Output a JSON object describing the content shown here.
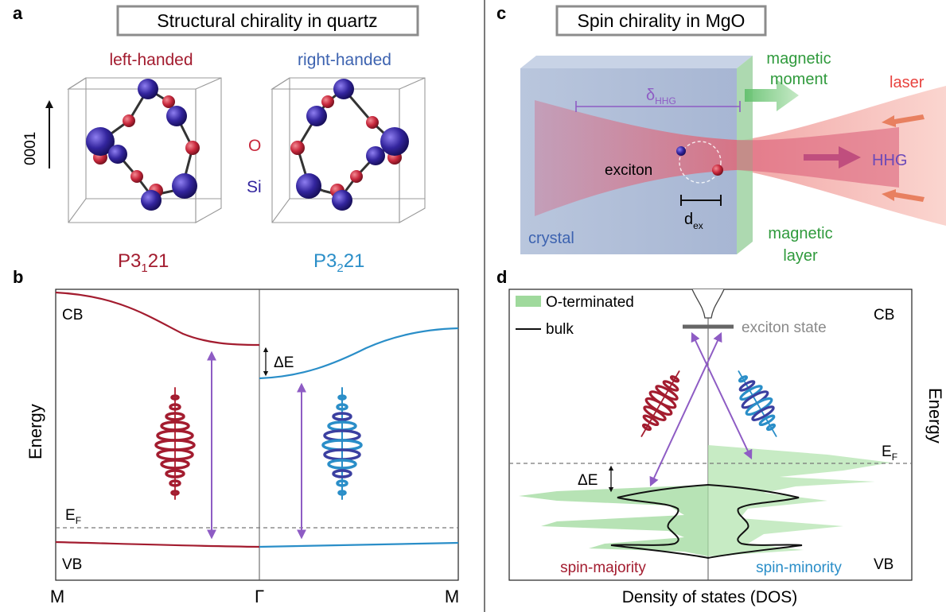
{
  "panel_a": {
    "letter": "a",
    "title": "Structural chirality in quartz",
    "left_label": "left-handed",
    "right_label": "right-handed",
    "axis_label": "0001",
    "legend_o": "O",
    "legend_si": "Si",
    "left_group_main": "P3",
    "left_group_sub": "1",
    "left_group_tail": "21",
    "right_group_main": "P3",
    "right_group_sub": "2",
    "right_group_tail": "21"
  },
  "panel_b": {
    "letter": "b",
    "ylabel": "Energy",
    "cb": "CB",
    "vb": "VB",
    "ef_main": "E",
    "ef_sub": "F",
    "delta_e": "ΔE",
    "x_ticks": [
      "M",
      "Γ",
      "M"
    ]
  },
  "panel_c": {
    "letter": "c",
    "title": "Spin chirality in MgO",
    "magnetic_moment_1": "magnetic",
    "magnetic_moment_2": "moment",
    "laser": "laser",
    "delta_main": "δ",
    "delta_sub": "HHG",
    "exciton": "exciton",
    "hhg": "HHG",
    "dex_main": "d",
    "dex_sub": "ex",
    "crystal": "crystal",
    "magnetic_layer_1": "magnetic",
    "magnetic_layer_2": "layer"
  },
  "panel_d": {
    "letter": "d",
    "legend_o": "O-terminated",
    "legend_bulk": "bulk",
    "exciton_state": "exciton state",
    "cb": "CB",
    "vb": "VB",
    "ylabel": "Energy",
    "ef_main": "E",
    "ef_sub": "F",
    "delta_e": "ΔE",
    "spin_majority": "spin-majority",
    "spin_minority": "spin-minority",
    "xlabel": "Density of states (DOS)"
  },
  "colors": {
    "red": "#a31c2f",
    "blue": "#2a8ec8",
    "purple": "#8e5cc4",
    "green": "#2f9a3c",
    "o_atom": "#c8283c",
    "si_atom": "#33259e",
    "dos_fill": "#bfe6b8"
  }
}
